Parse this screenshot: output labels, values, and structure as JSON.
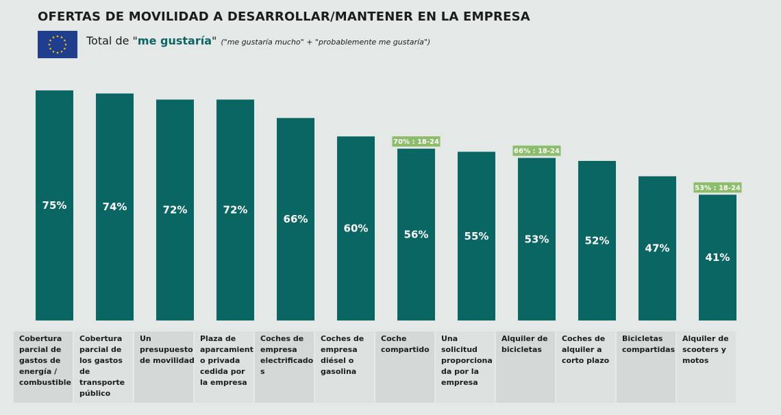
{
  "header": {
    "title": "OFERTAS DE MOVILIDAD A DESARROLLAR/MANTENER EN LA EMPRESA",
    "subtitle_prefix": "Total de \"",
    "subtitle_emphasis": "me gustaría",
    "subtitle_suffix": "\"",
    "subtitle_note": "(\"me gustaría mucho\" + \"probablemente me gustaría\")"
  },
  "colors": {
    "bar": "#0a6663",
    "badge": "#8dbd6a",
    "background": "#e4e9e8",
    "flag": "#1f3e8e",
    "star": "#f2c400"
  },
  "chart_data": {
    "type": "bar",
    "title": "OFERTAS DE MOVILIDAD A DESARROLLAR/MANTENER EN LA EMPRESA",
    "subtitle": "Total de \"me gustaría\" (\"me gustaría mucho\" + \"probablemente me gustaría\")",
    "xlabel": "",
    "ylabel": "",
    "ylim": [
      0,
      100
    ],
    "grid": false,
    "categories": [
      "Cobertura parcial de gastos de energía / combustible",
      "Cobertura parcial de los gastos de transporte público",
      "Un presupuesto de movilidad",
      "Plaza de aparcamiento privada cedida por la empresa",
      "Coches de empresa electrificados",
      "Coches de empresa diésel o gasolina",
      "Coche compartido",
      "Una solicitud proporcionada por la empresa",
      "Alquiler de bicicletas",
      "Coches de alquiler a corto plazo",
      "Bicicletas compartidas",
      "Alquiler de scooters y motos"
    ],
    "values": [
      75,
      74,
      72,
      72,
      66,
      60,
      56,
      55,
      53,
      52,
      47,
      41
    ],
    "value_labels": [
      "75%",
      "74%",
      "72%",
      "72%",
      "66%",
      "60%",
      "56%",
      "55%",
      "53%",
      "52%",
      "47%",
      "41%"
    ],
    "annotations": [
      {
        "category_index": 6,
        "text": "70% : 18-24"
      },
      {
        "category_index": 8,
        "text": "66% : 18-24"
      },
      {
        "category_index": 11,
        "text": "53% : 18-24"
      }
    ]
  }
}
